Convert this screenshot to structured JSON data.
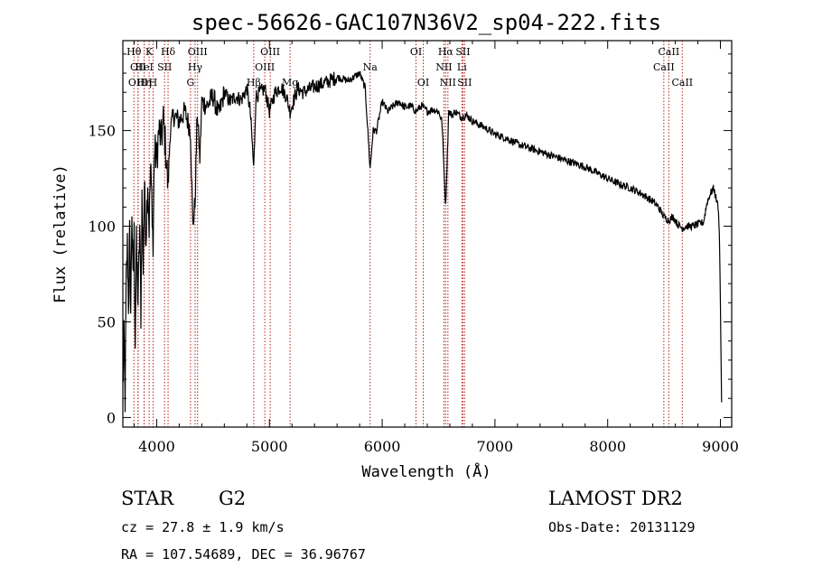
{
  "chart_data": {
    "type": "line",
    "title": "spec-56626-GAC107N36V2_sp04-222.fits",
    "xlabel": "Wavelength (Å)",
    "ylabel": "Flux (relative)",
    "xlim": [
      3700,
      9100
    ],
    "ylim": [
      -5,
      197
    ],
    "x_ticks": [
      4000,
      5000,
      6000,
      7000,
      8000,
      9000
    ],
    "y_ticks": [
      0,
      50,
      100,
      150
    ],
    "series": [
      {
        "name": "flux",
        "x": [
          3700,
          3710,
          3720,
          3730,
          3740,
          3750,
          3760,
          3770,
          3780,
          3790,
          3800,
          3810,
          3820,
          3835,
          3850,
          3860,
          3870,
          3880,
          3890,
          3905,
          3920,
          3933,
          3945,
          3960,
          3968,
          3980,
          4000,
          4020,
          4040,
          4060,
          4080,
          4101,
          4120,
          4150,
          4200,
          4250,
          4300,
          4320,
          4340,
          4360,
          4383,
          4400,
          4450,
          4500,
          4550,
          4600,
          4650,
          4700,
          4750,
          4800,
          4830,
          4861,
          4880,
          4920,
          4960,
          5000,
          5050,
          5100,
          5150,
          5183,
          5250,
          5300,
          5400,
          5500,
          5600,
          5700,
          5800,
          5850,
          5893,
          5920,
          5950,
          6000,
          6050,
          6100,
          6150,
          6200,
          6250,
          6300,
          6350,
          6400,
          6450,
          6500,
          6530,
          6563,
          6590,
          6620,
          6650,
          6700,
          6750,
          6800,
          6900,
          7000,
          7100,
          7200,
          7300,
          7400,
          7500,
          7600,
          7700,
          7800,
          7900,
          8000,
          8100,
          8200,
          8300,
          8400,
          8450,
          8498,
          8542,
          8580,
          8620,
          8662,
          8700,
          8750,
          8800,
          8850,
          8880,
          8910,
          8940,
          8960,
          8980,
          8990,
          9000,
          9010
        ],
        "values": [
          15,
          40,
          10,
          70,
          90,
          60,
          95,
          55,
          110,
          70,
          95,
          40,
          90,
          60,
          100,
          55,
          115,
          80,
          120,
          95,
          125,
          100,
          130,
          110,
          85,
          140,
          135,
          150,
          145,
          155,
          140,
          120,
          150,
          158,
          155,
          160,
          150,
          100,
          112,
          160,
          135,
          165,
          163,
          168,
          158,
          170,
          165,
          168,
          166,
          172,
          160,
          130,
          168,
          170,
          172,
          160,
          170,
          173,
          168,
          160,
          172,
          170,
          173,
          175,
          178,
          176,
          180,
          172,
          130,
          150,
          150,
          165,
          160,
          163,
          165,
          162,
          163,
          160,
          163,
          160,
          161,
          160,
          155,
          110,
          160,
          158,
          160,
          157,
          158,
          155,
          152,
          148,
          146,
          143,
          141,
          139,
          137,
          135,
          133,
          131,
          128,
          125,
          122,
          120,
          117,
          113,
          110,
          105,
          103,
          105,
          101,
          99,
          100,
          100,
          101,
          102,
          112,
          117,
          120,
          115,
          110,
          98,
          60,
          8
        ]
      }
    ],
    "spectral_lines": [
      {
        "wavelength": 3798,
        "label": "Hθ",
        "row": 0
      },
      {
        "wavelength": 3835,
        "label": "OII",
        "row": 1
      },
      {
        "wavelength": 3835,
        "label": "OIII",
        "row": 2
      },
      {
        "wavelength": 3889,
        "label": "HeI",
        "row": 1
      },
      {
        "wavelength": 3889,
        "label": "Hη",
        "row": 2
      },
      {
        "wavelength": 3933,
        "label": "K",
        "row": 0
      },
      {
        "wavelength": 3968,
        "label": "H",
        "row": 2
      },
      {
        "wavelength": 4070,
        "label": "SII",
        "row": 1
      },
      {
        "wavelength": 4101,
        "label": "Hδ",
        "row": 0
      },
      {
        "wavelength": 4300,
        "label": "G",
        "row": 2
      },
      {
        "wavelength": 4341,
        "label": "Hγ",
        "row": 1
      },
      {
        "wavelength": 4363,
        "label": "OIII",
        "row": 0
      },
      {
        "wavelength": 4861,
        "label": "Hβ",
        "row": 2
      },
      {
        "wavelength": 4959,
        "label": "OIII",
        "row": 1
      },
      {
        "wavelength": 5007,
        "label": "OIII",
        "row": 0
      },
      {
        "wavelength": 5183,
        "label": "Mg",
        "row": 2
      },
      {
        "wavelength": 5893,
        "label": "Na",
        "row": 1
      },
      {
        "wavelength": 6300,
        "label": "OI",
        "row": 0
      },
      {
        "wavelength": 6364,
        "label": "OI",
        "row": 2
      },
      {
        "wavelength": 6548,
        "label": "NII",
        "row": 1
      },
      {
        "wavelength": 6563,
        "label": "Hα",
        "row": 0
      },
      {
        "wavelength": 6583,
        "label": "NII",
        "row": 2
      },
      {
        "wavelength": 6707,
        "label": "Li",
        "row": 1
      },
      {
        "wavelength": 6716,
        "label": "SII",
        "row": 0
      },
      {
        "wavelength": 6731,
        "label": "SII",
        "row": 2
      },
      {
        "wavelength": 8498,
        "label": "CaII",
        "row": 1
      },
      {
        "wavelength": 8542,
        "label": "CaII",
        "row": 0
      },
      {
        "wavelength": 8662,
        "label": "CaII",
        "row": 2
      }
    ]
  },
  "info": {
    "class": "STAR",
    "subclass": "G2",
    "survey": "LAMOST DR2",
    "cz": "cz = 27.8 ± 1.9 km/s",
    "coords": "RA = 107.54689, DEC =  36.96767",
    "obs_date": "Obs-Date: 20131129"
  },
  "colors": {
    "line_marker": "#b22222",
    "spectrum": "#000000"
  }
}
